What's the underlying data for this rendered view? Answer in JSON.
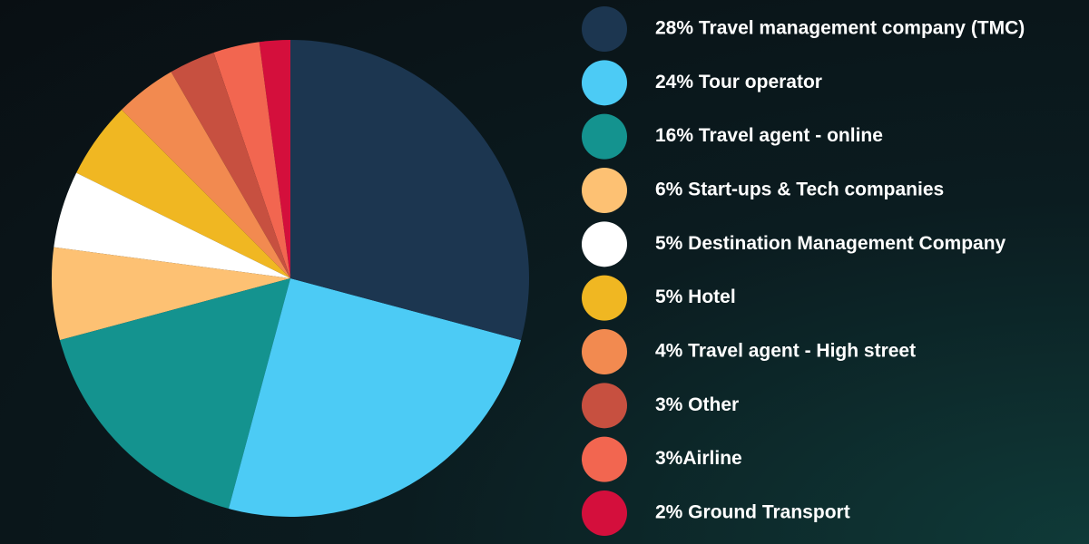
{
  "chart_data": {
    "type": "pie",
    "categories": [
      "28% Travel management company (TMC)",
      "24% Tour operator",
      "16% Travel agent - online",
      "6% Start-ups & Tech companies",
      "5% Destination Management Company",
      "5% Hotel",
      "4% Travel agent - High street",
      "3% Other",
      "3%Airline",
      "2% Ground Transport"
    ],
    "values": [
      28,
      24,
      16,
      6,
      5,
      5,
      4,
      3,
      3,
      2
    ],
    "colors": [
      "#1c3650",
      "#4ccbf5",
      "#14938f",
      "#fdc173",
      "#ffffff",
      "#f0b722",
      "#f28a50",
      "#c75040",
      "#f26650",
      "#d40f3c"
    ]
  }
}
